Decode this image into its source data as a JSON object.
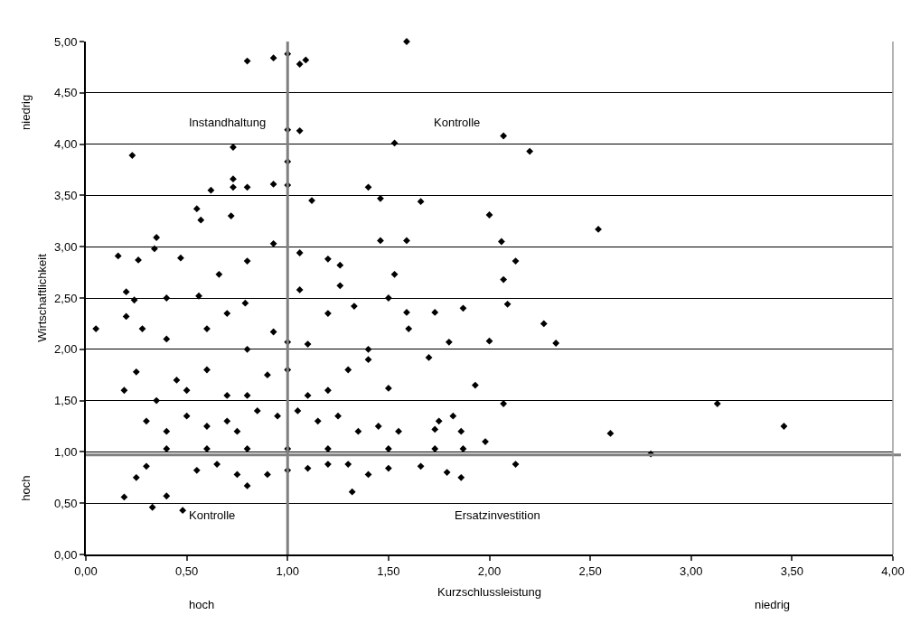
{
  "chart_data": {
    "type": "scatter",
    "xlabel": "Kurzschlussleistung",
    "ylabel": "Wirtschaftlichkeit",
    "xlim": [
      0,
      4
    ],
    "xticks": [
      {
        "value": 0,
        "label": "0,00"
      },
      {
        "value": 0.5,
        "label": "0,50"
      },
      {
        "value": 1,
        "label": "1,00"
      },
      {
        "value": 1.5,
        "label": "1,50"
      },
      {
        "value": 2,
        "label": "2,00"
      },
      {
        "value": 2.5,
        "label": "2,50"
      },
      {
        "value": 3,
        "label": "3,00"
      },
      {
        "value": 3.5,
        "label": "3,50"
      },
      {
        "value": 4,
        "label": "4,00"
      }
    ],
    "ylim": [
      0,
      5
    ],
    "yticks": [
      {
        "value": 0,
        "label": "0,00"
      },
      {
        "value": 0.5,
        "label": "0,50"
      },
      {
        "value": 1,
        "label": "1,00"
      },
      {
        "value": 1.5,
        "label": "1,50"
      },
      {
        "value": 2,
        "label": "2,00"
      },
      {
        "value": 2.5,
        "label": "2,50"
      },
      {
        "value": 3,
        "label": "3,00"
      },
      {
        "value": 3.5,
        "label": "3,50"
      },
      {
        "value": 4,
        "label": "4,00"
      },
      {
        "value": 4.5,
        "label": "4,50"
      },
      {
        "value": 5,
        "label": "5,00"
      }
    ],
    "grid": "y",
    "legend": false,
    "marker": "diamond",
    "series": [
      {
        "color": "#000000",
        "x": [
          0.8,
          0.93,
          1.0,
          1.06,
          1.09,
          1.59,
          0.23,
          0.73,
          1.0,
          1.06,
          1.53,
          2.07,
          2.2,
          0.73,
          0.73,
          0.62,
          0.8,
          0.93,
          1.0,
          1.0,
          1.4,
          1.46,
          1.12,
          0.55,
          0.57,
          0.72,
          2.0,
          2.54,
          1.66,
          0.35,
          0.34,
          0.16,
          0.26,
          0.47,
          0.8,
          0.93,
          1.06,
          1.2,
          1.26,
          1.53,
          1.59,
          1.46,
          2.06,
          2.13,
          0.66,
          0.2,
          0.24,
          0.4,
          0.56,
          0.79,
          1.06,
          1.26,
          1.5,
          2.07,
          2.09,
          2.27,
          2.33,
          1.87,
          1.73,
          1.59,
          0.05,
          0.2,
          0.28,
          0.4,
          0.6,
          0.7,
          0.8,
          0.93,
          1.0,
          1.1,
          1.2,
          1.33,
          1.4,
          1.6,
          1.8,
          2.0,
          1.93,
          0.25,
          0.35,
          0.45,
          0.5,
          0.6,
          0.7,
          0.8,
          0.9,
          1.0,
          1.1,
          1.2,
          1.3,
          1.4,
          1.5,
          1.7,
          0.19,
          0.3,
          0.4,
          0.5,
          0.6,
          0.7,
          0.75,
          0.85,
          0.95,
          1.05,
          1.15,
          1.25,
          1.35,
          1.45,
          1.55,
          1.75,
          1.82,
          1.73,
          1.86,
          1.98,
          2.07,
          2.6,
          3.13,
          3.46,
          2.8,
          0.4,
          0.6,
          0.8,
          1.0,
          1.2,
          1.5,
          1.73,
          1.87,
          0.19,
          0.25,
          0.3,
          0.33,
          0.4,
          0.48,
          0.55,
          0.65,
          0.75,
          0.8,
          0.9,
          1.0,
          1.1,
          1.2,
          1.32,
          1.3,
          1.5,
          1.66,
          1.79,
          1.86,
          2.13,
          1.4
        ],
        "values": [
          4.81,
          4.84,
          4.88,
          4.78,
          4.82,
          5.0,
          3.89,
          3.97,
          4.14,
          4.13,
          4.01,
          4.08,
          3.93,
          3.66,
          3.58,
          3.55,
          3.58,
          3.61,
          3.6,
          3.83,
          3.58,
          3.47,
          3.45,
          3.37,
          3.26,
          3.3,
          3.31,
          3.17,
          3.44,
          3.09,
          2.98,
          2.91,
          2.87,
          2.89,
          2.86,
          3.03,
          2.94,
          2.88,
          2.82,
          2.73,
          3.06,
          3.06,
          3.05,
          2.86,
          2.73,
          2.56,
          2.48,
          2.5,
          2.52,
          2.45,
          2.58,
          2.62,
          2.5,
          2.68,
          2.44,
          2.25,
          2.06,
          2.4,
          2.36,
          2.36,
          2.2,
          2.32,
          2.2,
          2.1,
          2.2,
          2.35,
          2.0,
          2.17,
          2.07,
          2.05,
          2.35,
          2.42,
          2.0,
          2.2,
          2.07,
          2.08,
          1.65,
          1.78,
          1.5,
          1.7,
          1.6,
          1.8,
          1.55,
          1.55,
          1.75,
          1.8,
          1.55,
          1.6,
          1.8,
          1.9,
          1.62,
          1.92,
          1.6,
          1.3,
          1.2,
          1.35,
          1.25,
          1.3,
          1.2,
          1.4,
          1.35,
          1.4,
          1.3,
          1.35,
          1.2,
          1.25,
          1.2,
          1.3,
          1.35,
          1.22,
          1.2,
          1.1,
          1.47,
          1.18,
          1.47,
          1.25,
          0.98,
          1.03,
          1.03,
          1.03,
          1.03,
          1.03,
          1.03,
          1.03,
          1.03,
          0.56,
          0.75,
          0.86,
          0.46,
          0.57,
          0.43,
          0.82,
          0.88,
          0.78,
          0.67,
          0.78,
          0.82,
          0.84,
          0.88,
          0.61,
          0.88,
          0.84,
          0.86,
          0.8,
          0.75,
          0.88,
          0.78
        ]
      }
    ],
    "ref_lines": [
      {
        "axis": "x",
        "value": 1,
        "color": "#808080"
      },
      {
        "axis": "y",
        "value": 0.97,
        "color": "#808080"
      }
    ],
    "annotations": [
      "Instandhaltung",
      "Kontrolle",
      "Kontrolle",
      "Ersatzinvestition",
      "hoch",
      "niedrig",
      "niedrig",
      "hoch"
    ]
  }
}
